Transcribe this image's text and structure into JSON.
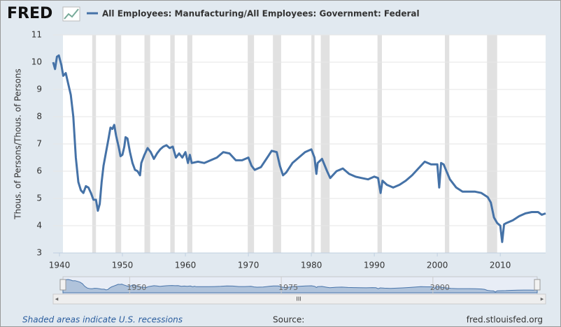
{
  "logo": "FRED",
  "chart_data": {
    "type": "line",
    "y_label": "Thous. of Persons/Thous. of Persons",
    "x": [
      1939.0,
      1939.3,
      1939.6,
      1939.9,
      1940.3,
      1940.6,
      1941.0,
      1941.4,
      1941.8,
      1942.2,
      1942.6,
      1943.0,
      1943.4,
      1943.8,
      1944.2,
      1944.6,
      1945.0,
      1945.4,
      1945.8,
      1946.1,
      1946.4,
      1946.7,
      1947.0,
      1947.4,
      1947.8,
      1948.1,
      1948.4,
      1948.7,
      1949.0,
      1949.4,
      1949.7,
      1950.0,
      1950.3,
      1950.5,
      1950.8,
      1951.2,
      1951.6,
      1952.0,
      1952.4,
      1952.8,
      1953.0,
      1953.5,
      1954.0,
      1954.5,
      1955.0,
      1955.5,
      1956.0,
      1956.5,
      1957.0,
      1957.5,
      1958.0,
      1958.5,
      1959.0,
      1959.5,
      1960.0,
      1960.4,
      1960.7,
      1961.0,
      1962.0,
      1963.0,
      1964.0,
      1965.0,
      1966.0,
      1967.0,
      1968.0,
      1969.0,
      1970.0,
      1970.5,
      1971.0,
      1972.0,
      1973.0,
      1973.7,
      1974.5,
      1975.0,
      1975.5,
      1976.0,
      1977.0,
      1978.0,
      1979.0,
      1980.0,
      1980.5,
      1980.8,
      1981.0,
      1981.7,
      1982.5,
      1983.0,
      1984.0,
      1985.0,
      1986.0,
      1987.0,
      1988.0,
      1989.0,
      1990.0,
      1990.6,
      1991.0,
      1991.3,
      1992.0,
      1993.0,
      1994.0,
      1995.0,
      1996.0,
      1997.0,
      1998.0,
      1999.0,
      2000.0,
      2000.3,
      2000.6,
      2001.0,
      2002.0,
      2003.0,
      2004.0,
      2005.0,
      2006.0,
      2007.0,
      2008.0,
      2008.5,
      2009.0,
      2009.5,
      2010.0,
      2010.3,
      2010.6,
      2011.0,
      2012.0,
      2013.0,
      2014.0,
      2015.0,
      2016.0,
      2016.6,
      2017.2
    ],
    "series": [
      {
        "name": "All Employees: Manufacturing/All Employees: Government: Federal",
        "color": "#4572a7",
        "values": [
          10.0,
          9.75,
          10.2,
          10.25,
          9.9,
          9.5,
          9.6,
          9.2,
          8.8,
          8.0,
          6.5,
          5.6,
          5.3,
          5.2,
          5.45,
          5.4,
          5.2,
          4.95,
          4.95,
          4.55,
          4.8,
          5.6,
          6.2,
          6.7,
          7.2,
          7.6,
          7.55,
          7.7,
          7.3,
          6.9,
          6.55,
          6.6,
          6.9,
          7.25,
          7.2,
          6.7,
          6.3,
          6.05,
          6.0,
          5.85,
          6.3,
          6.6,
          6.85,
          6.7,
          6.45,
          6.65,
          6.8,
          6.9,
          6.95,
          6.85,
          6.9,
          6.5,
          6.65,
          6.5,
          6.7,
          6.3,
          6.6,
          6.3,
          6.35,
          6.3,
          6.4,
          6.5,
          6.7,
          6.65,
          6.4,
          6.4,
          6.5,
          6.2,
          6.05,
          6.15,
          6.5,
          6.75,
          6.7,
          6.2,
          5.85,
          5.95,
          6.3,
          6.5,
          6.7,
          6.8,
          6.5,
          5.9,
          6.3,
          6.45,
          6.0,
          5.75,
          6.0,
          6.1,
          5.9,
          5.8,
          5.75,
          5.7,
          5.8,
          5.75,
          5.2,
          5.65,
          5.5,
          5.4,
          5.5,
          5.65,
          5.85,
          6.1,
          6.35,
          6.25,
          6.25,
          5.4,
          6.3,
          6.25,
          5.7,
          5.4,
          5.25,
          5.25,
          5.25,
          5.2,
          5.05,
          4.85,
          4.3,
          4.1,
          4.0,
          3.4,
          4.05,
          4.1,
          4.2,
          4.35,
          4.45,
          4.5,
          4.5,
          4.4,
          4.45
        ]
      }
    ],
    "recessions": [
      [
        1945.2,
        1945.8
      ],
      [
        1948.9,
        1949.8
      ],
      [
        1953.5,
        1954.4
      ],
      [
        1957.6,
        1958.3
      ],
      [
        1960.3,
        1961.1
      ],
      [
        1969.9,
        1970.9
      ],
      [
        1973.9,
        1975.2
      ],
      [
        1980.0,
        1980.5
      ],
      [
        1981.5,
        1982.9
      ],
      [
        1990.5,
        1991.2
      ],
      [
        2001.2,
        2001.9
      ],
      [
        2007.9,
        2009.5
      ]
    ],
    "xlim": [
      1939,
      2017.2
    ],
    "ylim": [
      3,
      11
    ],
    "xticks": [
      1940,
      1950,
      1960,
      1970,
      1980,
      1990,
      2000,
      2010
    ],
    "yticks": [
      3,
      4,
      5,
      6,
      7,
      8,
      9,
      10,
      11
    ],
    "grid": true,
    "navigator_ticks": [
      1950,
      1975,
      2000
    ]
  },
  "footer": {
    "note": "Shaded areas indicate U.S. recessions",
    "source": "Source:",
    "site": "fred.stlouisfed.org"
  }
}
